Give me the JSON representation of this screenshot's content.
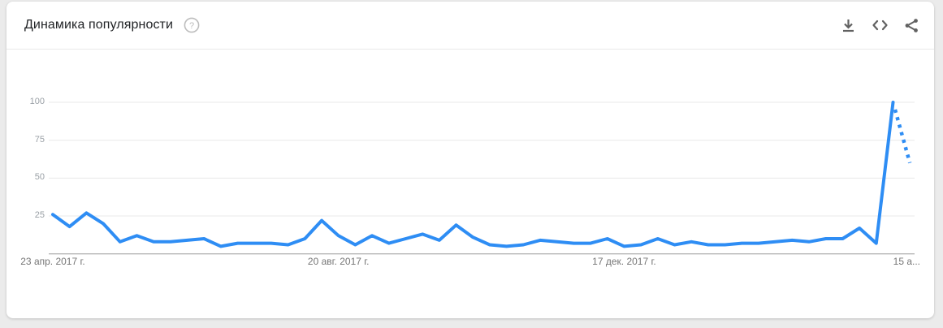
{
  "header": {
    "title": "Динамика популярности",
    "help_glyph": "?",
    "icons": [
      "question-mark-circle",
      "download",
      "embed-code",
      "share"
    ]
  },
  "colors": {
    "line_blue": "#2e8df4",
    "grid": "#e8e8e8",
    "axis": "#9a9a9a",
    "icon_gray": "#616161",
    "help_gray": "#bdbdbd"
  },
  "chart_data": {
    "type": "line",
    "title": "Динамика популярности",
    "x_tick_labels": [
      "23 апр. 2017 г.",
      "20 авг. 2017 г.",
      "17 дек. 2017 г.",
      "15 а..."
    ],
    "x_tick_weeks": [
      0,
      17,
      34,
      51
    ],
    "y_tick_labels": [
      25,
      50,
      75,
      100
    ],
    "ylim": [
      0,
      100
    ],
    "grid": true,
    "legend_position": "none",
    "last_segment_dotted": true,
    "series": [
      {
        "color": "#2e8df4",
        "values": [
          26,
          18,
          27,
          20,
          8,
          12,
          8,
          8,
          9,
          10,
          5,
          7,
          7,
          7,
          6,
          10,
          22,
          12,
          6,
          12,
          7,
          10,
          13,
          9,
          19,
          11,
          6,
          5,
          6,
          9,
          8,
          7,
          7,
          10,
          5,
          6,
          10,
          6,
          8,
          6,
          6,
          7,
          7,
          8,
          9,
          8,
          10,
          10,
          17,
          7,
          100,
          60
        ]
      }
    ]
  }
}
